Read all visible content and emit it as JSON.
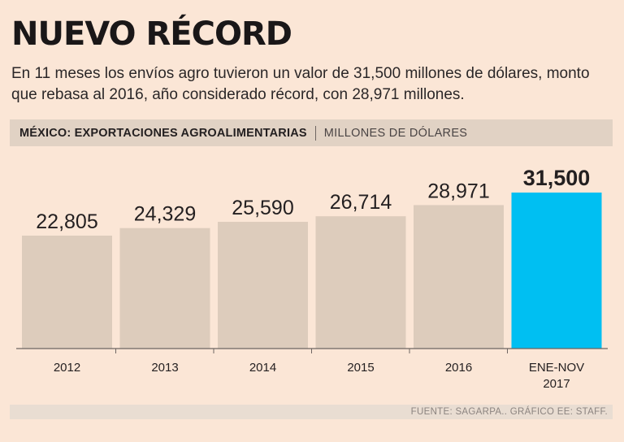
{
  "header": {
    "title": "NUEVO RÉCORD",
    "subtitle": "En 11 meses los envíos agro tuvieron un valor de 31,500 millones de dólares, monto que rebasa al 2016, año considerado récord, con 28,971 millones."
  },
  "chart_data": {
    "type": "bar",
    "title": "MÉXICO: EXPORTACIONES AGROALIMENTARIAS",
    "unit": "MILLONES DE DÓLARES",
    "categories": [
      "2012",
      "2013",
      "2014",
      "2015",
      "2016",
      "ENE-NOV 2017"
    ],
    "values": [
      22805,
      24329,
      25590,
      26714,
      28971,
      31500
    ],
    "value_labels": [
      "22,805",
      "24,329",
      "25,590",
      "26,714",
      "28,971",
      "31,500"
    ],
    "highlight_index": 5,
    "ylim": [
      0,
      31500
    ],
    "colors": {
      "bar": "#ddccbc",
      "highlight": "#00bff2",
      "axis": "#6e6562"
    }
  },
  "footer": {
    "source": "FUENTE: SAGARPA.. GRÁFICO EE: STAFF."
  }
}
